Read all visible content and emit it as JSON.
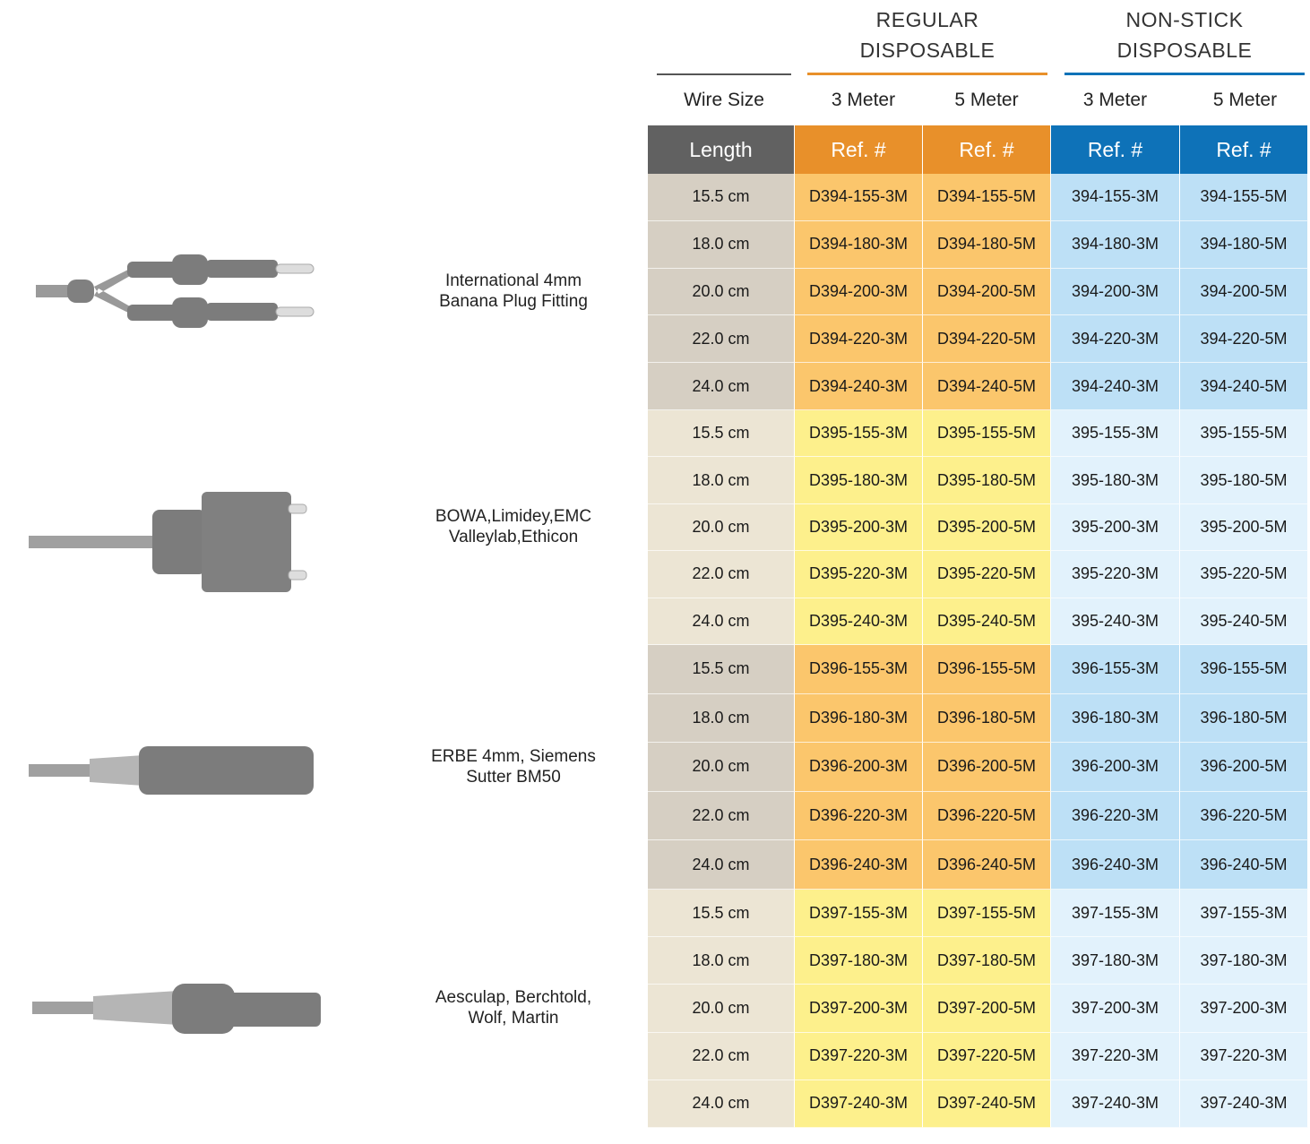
{
  "column_groups": [
    {
      "lines": [
        "REGULAR",
        "DISPOSABLE"
      ]
    },
    {
      "lines": [
        "NON-STICK",
        "DISPOSABLE"
      ]
    }
  ],
  "sub_headers": [
    "Wire Size",
    "3 Meter",
    "5 Meter",
    "3 Meter",
    "5 Meter"
  ],
  "header_row": [
    "Length",
    "Ref. #",
    "Ref. #",
    "Ref. #",
    "Ref. #"
  ],
  "groups": [
    {
      "label": [
        "International 4mm",
        "Banana Plug Fitting"
      ],
      "rows": [
        [
          "15.5 cm",
          "D394-155-3M",
          "D394-155-5M",
          "394-155-3M",
          "394-155-5M"
        ],
        [
          "18.0 cm",
          "D394-180-3M",
          "D394-180-5M",
          "394-180-3M",
          "394-180-5M"
        ],
        [
          "20.0 cm",
          "D394-200-3M",
          "D394-200-5M",
          "394-200-3M",
          "394-200-5M"
        ],
        [
          "22.0 cm",
          "D394-220-3M",
          "D394-220-5M",
          "394-220-3M",
          "394-220-5M"
        ],
        [
          "24.0 cm",
          "D394-240-3M",
          "D394-240-5M",
          "394-240-3M",
          "394-240-5M"
        ]
      ]
    },
    {
      "label": [
        "BOWA,Limidey,EMC",
        "Valleylab,Ethicon"
      ],
      "rows": [
        [
          "15.5 cm",
          "D395-155-3M",
          "D395-155-5M",
          "395-155-3M",
          "395-155-5M"
        ],
        [
          "18.0 cm",
          "D395-180-3M",
          "D395-180-5M",
          "395-180-3M",
          "395-180-5M"
        ],
        [
          "20.0 cm",
          "D395-200-3M",
          "D395-200-5M",
          "395-200-3M",
          "395-200-5M"
        ],
        [
          "22.0 cm",
          "D395-220-3M",
          "D395-220-5M",
          "395-220-3M",
          "395-220-5M"
        ],
        [
          "24.0 cm",
          "D395-240-3M",
          "D395-240-5M",
          "395-240-3M",
          "395-240-5M"
        ]
      ]
    },
    {
      "label": [
        "ERBE 4mm, Siemens",
        "Sutter BM50"
      ],
      "rows": [
        [
          "15.5 cm",
          "D396-155-3M",
          "D396-155-5M",
          "396-155-3M",
          "396-155-5M"
        ],
        [
          "18.0 cm",
          "D396-180-3M",
          "D396-180-5M",
          "396-180-3M",
          "396-180-5M"
        ],
        [
          "20.0 cm",
          "D396-200-3M",
          "D396-200-5M",
          "396-200-3M",
          "396-200-5M"
        ],
        [
          "22.0 cm",
          "D396-220-3M",
          "D396-220-5M",
          "396-220-3M",
          "396-220-5M"
        ],
        [
          "24.0 cm",
          "D396-240-3M",
          "D396-240-5M",
          "396-240-3M",
          "396-240-5M"
        ]
      ]
    },
    {
      "label": [
        "Aesculap, Berchtold,",
        "Wolf, Martin"
      ],
      "rows": [
        [
          "15.5 cm",
          "D397-155-3M",
          "D397-155-5M",
          "397-155-3M",
          "397-155-3M"
        ],
        [
          "18.0 cm",
          "D397-180-3M",
          "D397-180-5M",
          "397-180-3M",
          "397-180-3M"
        ],
        [
          "20.0 cm",
          "D397-200-3M",
          "D397-200-5M",
          "397-200-3M",
          "397-200-3M"
        ],
        [
          "22.0 cm",
          "D397-220-3M",
          "D397-220-5M",
          "397-220-3M",
          "397-220-3M"
        ],
        [
          "24.0 cm",
          "D397-240-3M",
          "D397-240-5M",
          "397-240-3M",
          "397-240-3M"
        ]
      ]
    }
  ]
}
